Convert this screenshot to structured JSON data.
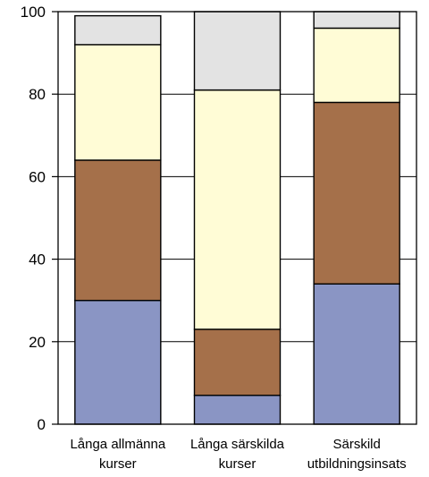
{
  "chart_data": {
    "type": "bar",
    "stacked": true,
    "categories": [
      [
        "Långa allmänna",
        "kurser"
      ],
      [
        "Långa särskilda",
        "kurser"
      ],
      [
        "Särskild",
        "utbildningsinsats"
      ]
    ],
    "series": [
      {
        "color": "#8a95c4",
        "values": [
          30,
          7,
          34
        ]
      },
      {
        "color": "#a5704a",
        "values": [
          34,
          16,
          44
        ]
      },
      {
        "color": "#fffcd6",
        "values": [
          28,
          58,
          18
        ]
      },
      {
        "color": "#e3e3e3",
        "values": [
          7,
          19,
          4
        ]
      }
    ],
    "ylim": [
      0,
      100
    ],
    "yticks": [
      "0",
      "20",
      "40",
      "60",
      "80",
      "100"
    ],
    "grid": true,
    "legend": "none"
  }
}
